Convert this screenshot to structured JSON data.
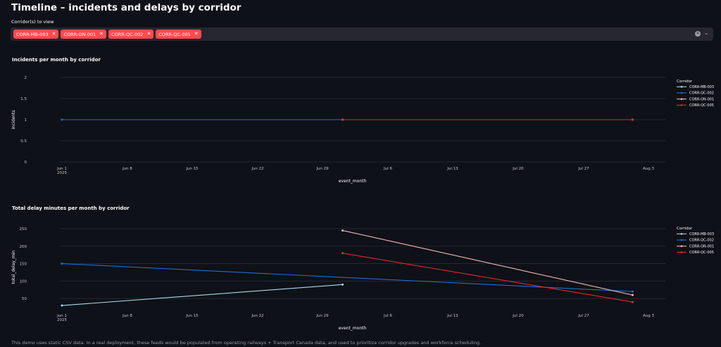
{
  "page": {
    "title": "Timeline – incidents and delays by corridor",
    "footer": "This demo uses static CSV data. In a real deployment, these feeds would be populated from operating railways + Transport Canada data, and used to prioritize corridor upgrades and workforce scheduling."
  },
  "multiselect": {
    "label": "Corridor(s) to view",
    "chips": [
      {
        "label": "CORR-MB-003"
      },
      {
        "label": "CORR-ON-001"
      },
      {
        "label": "CORR-QC-002"
      },
      {
        "label": "CORR-QC-005"
      }
    ],
    "clear_icon": "clear-icon",
    "dropdown_icon": "chevron-down-icon",
    "chip_color": "#ff4b4b"
  },
  "chart_data": [
    {
      "type": "line",
      "title": "Incidents per month by corridor",
      "xlabel": "event_month",
      "ylabel": "incidents",
      "x_ticks": [
        "Jun 1\n2025",
        "Jun 8",
        "Jun 15",
        "Jun 22",
        "Jun 29",
        "Jul 6",
        "Jul 13",
        "Jul 20",
        "Jul 27",
        "Aug 3"
      ],
      "y_ticks": [
        "0",
        "0.5",
        "1",
        "1.5",
        "2"
      ],
      "ylim": [
        0,
        2
      ],
      "grid": true,
      "legend_title": "Corridor",
      "legend_position": "right",
      "series": [
        {
          "name": "CORR-MB-003",
          "color": "#a8d8f0",
          "points": [
            {
              "x": "2025-07-01",
              "y": 1
            }
          ]
        },
        {
          "name": "CORR-QC-002",
          "color": "#1f6fd0",
          "points": [
            {
              "x": "2025-06-01",
              "y": 1
            },
            {
              "x": "2025-07-01",
              "y": 1
            }
          ]
        },
        {
          "name": "CORR-ON-001",
          "color": "#f4b8b8",
          "points": [
            {
              "x": "2025-07-01",
              "y": 1
            },
            {
              "x": "2025-08-01",
              "y": 1
            }
          ]
        },
        {
          "name": "CORR-QC-005",
          "color": "#e0282e",
          "points": [
            {
              "x": "2025-07-01",
              "y": 1
            },
            {
              "x": "2025-08-01",
              "y": 1
            }
          ]
        }
      ]
    },
    {
      "type": "line",
      "title": "Total delay minutes per month by corridor",
      "xlabel": "event_month",
      "ylabel": "total_delay_min",
      "x_ticks": [
        "Jun 1\n2025",
        "Jun 8",
        "Jun 15",
        "Jun 22",
        "Jun 29",
        "Jul 6",
        "Jul 13",
        "Jul 20",
        "Jul 27",
        "Aug 3"
      ],
      "y_ticks": [
        "50",
        "100",
        "150",
        "200",
        "250"
      ],
      "ylim": [
        20,
        260
      ],
      "grid": true,
      "legend_title": "Corridor",
      "legend_position": "right",
      "series": [
        {
          "name": "CORR-MB-003",
          "color": "#a8d8f0",
          "points": [
            {
              "x": "2025-06-01",
              "y": 30
            },
            {
              "x": "2025-07-01",
              "y": 90
            }
          ]
        },
        {
          "name": "CORR-QC-002",
          "color": "#1f6fd0",
          "points": [
            {
              "x": "2025-06-01",
              "y": 150
            },
            {
              "x": "2025-08-01",
              "y": 70
            }
          ]
        },
        {
          "name": "CORR-ON-001",
          "color": "#f4b8b8",
          "points": [
            {
              "x": "2025-07-01",
              "y": 245
            },
            {
              "x": "2025-08-01",
              "y": 60
            }
          ]
        },
        {
          "name": "CORR-QC-005",
          "color": "#e0282e",
          "points": [
            {
              "x": "2025-07-01",
              "y": 180
            },
            {
              "x": "2025-08-01",
              "y": 40
            }
          ]
        }
      ]
    }
  ]
}
